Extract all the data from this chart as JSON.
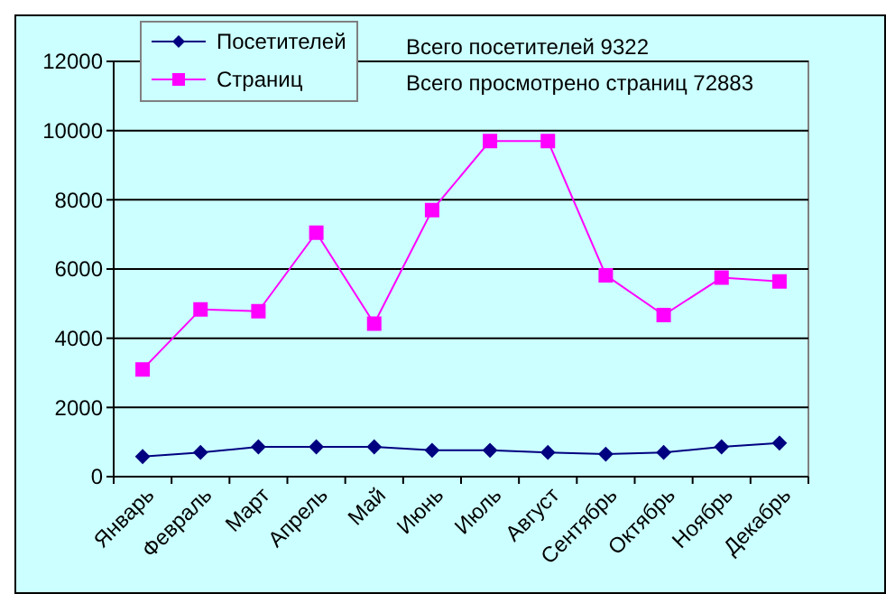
{
  "chart_data": {
    "type": "line",
    "categories": [
      "Январь",
      "Февраль",
      "Март",
      "Апрель",
      "Май",
      "Июнь",
      "Июль",
      "Август",
      "Сентябрь",
      "Октябрь",
      "Ноябрь",
      "Декабрь"
    ],
    "series": [
      {
        "name": "Посетителей",
        "color": "#000080",
        "marker": "diamond",
        "values": [
          580,
          700,
          860,
          860,
          860,
          760,
          760,
          700,
          650,
          700,
          860,
          970
        ]
      },
      {
        "name": "Страниц",
        "color": "#ff00ff",
        "marker": "square",
        "values": [
          3100,
          4830,
          4780,
          7050,
          4420,
          7700,
          9700,
          9700,
          5820,
          4670,
          5750,
          5640
        ]
      }
    ],
    "ylim": [
      0,
      12000
    ],
    "yticks": [
      0,
      2000,
      4000,
      6000,
      8000,
      10000,
      12000
    ],
    "grid": "y",
    "legend": "top left",
    "annotations": [
      "Всего посетителей 9322",
      "Всего просмотрено страниц 72883"
    ]
  }
}
